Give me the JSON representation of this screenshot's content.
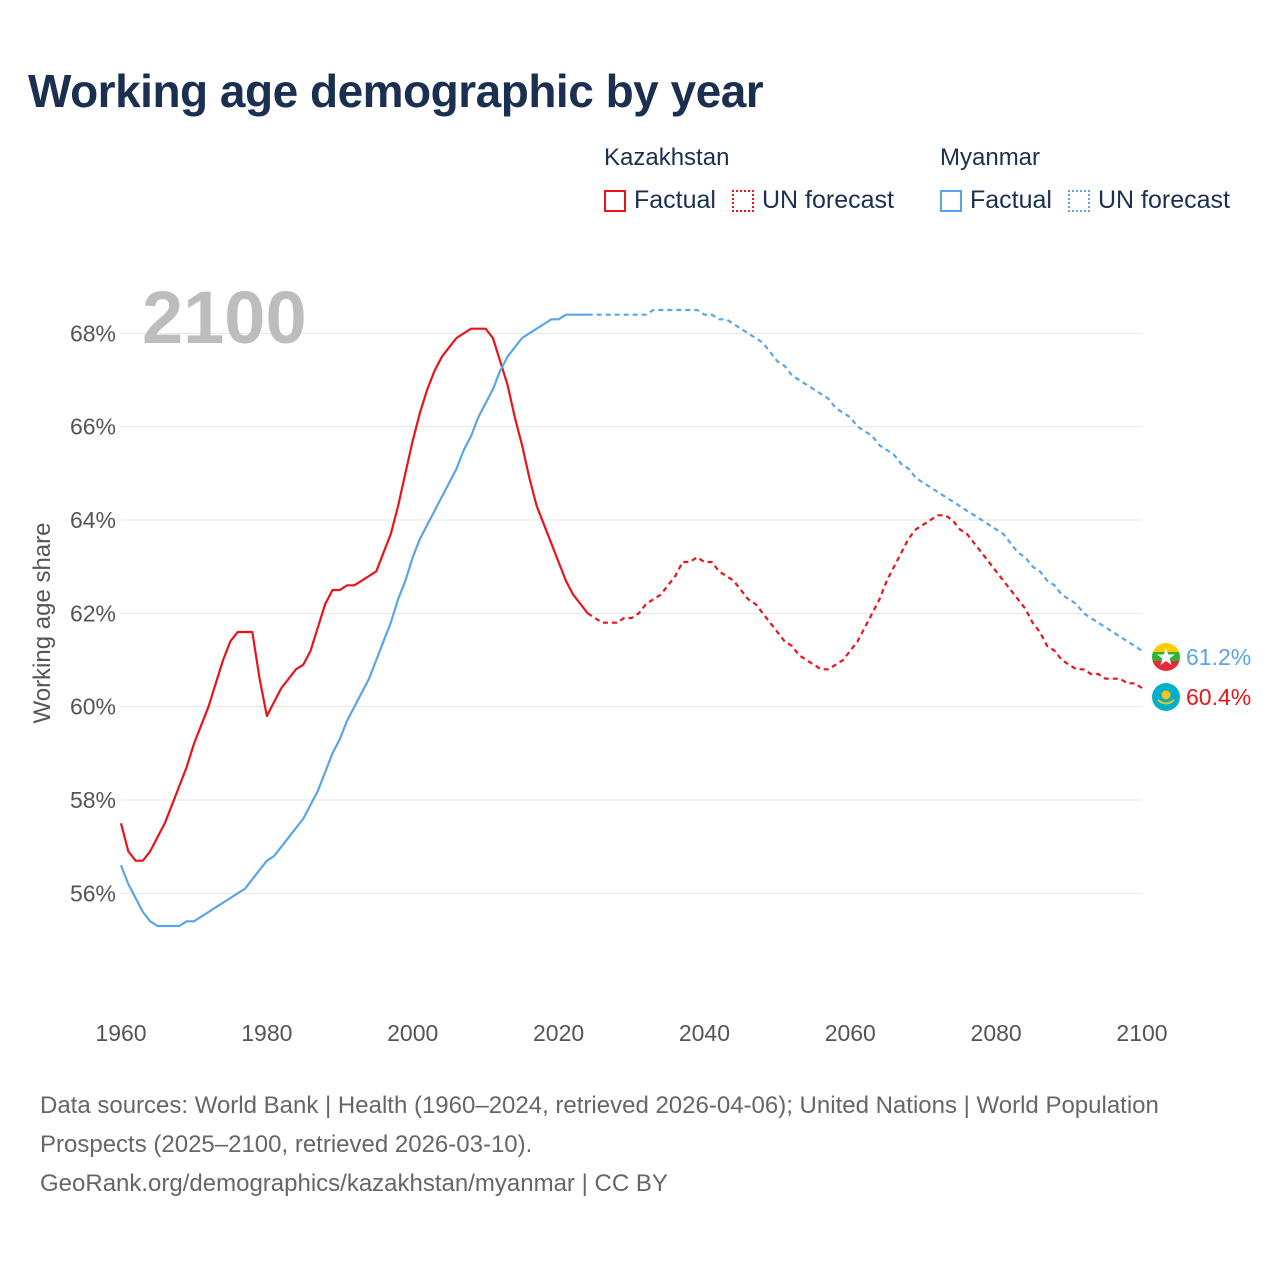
{
  "title": "Working age demographic by year",
  "year_label": "2100",
  "legend": {
    "groups": [
      {
        "name": "Kazakhstan",
        "factual_label": "Factual",
        "forecast_label": "UN forecast",
        "color": "#e8141a"
      },
      {
        "name": "Myanmar",
        "factual_label": "Factual",
        "forecast_label": "UN forecast",
        "color": "#5aa5e6"
      }
    ]
  },
  "sources": {
    "line1": "Data sources: World Bank | Health (1960–2024, retrieved 2026-04-06); United Nations | World Population Prospects (2025–2100, retrieved 2026-03-10).",
    "line2": "GeoRank.org/demographics/kazakhstan/myanmar | CC BY"
  },
  "chart_data": {
    "type": "line",
    "title": "Working age demographic by year",
    "xlabel": "",
    "ylabel": "Working age share",
    "xlim": [
      1960,
      2100
    ],
    "ylim": [
      54.4,
      69.4
    ],
    "x_ticks": [
      1960,
      1980,
      2000,
      2020,
      2040,
      2060,
      2080,
      2100
    ],
    "y_ticks": [
      56,
      58,
      60,
      62,
      64,
      66,
      68
    ],
    "y_tick_suffix": "%",
    "factual_end_year": 2024,
    "series": [
      {
        "name": "Kazakhstan",
        "color": "#e8141a",
        "end_label": "60.4%",
        "points": [
          [
            1960,
            57.5
          ],
          [
            1961,
            56.9
          ],
          [
            1962,
            56.7
          ],
          [
            1963,
            56.7
          ],
          [
            1964,
            56.9
          ],
          [
            1965,
            57.2
          ],
          [
            1966,
            57.5
          ],
          [
            1967,
            57.9
          ],
          [
            1968,
            58.3
          ],
          [
            1969,
            58.7
          ],
          [
            1970,
            59.2
          ],
          [
            1971,
            59.6
          ],
          [
            1972,
            60.0
          ],
          [
            1973,
            60.5
          ],
          [
            1974,
            61.0
          ],
          [
            1975,
            61.4
          ],
          [
            1976,
            61.6
          ],
          [
            1977,
            61.6
          ],
          [
            1978,
            61.6
          ],
          [
            1979,
            60.6
          ],
          [
            1980,
            59.8
          ],
          [
            1981,
            60.1
          ],
          [
            1982,
            60.4
          ],
          [
            1983,
            60.6
          ],
          [
            1984,
            60.8
          ],
          [
            1985,
            60.9
          ],
          [
            1986,
            61.2
          ],
          [
            1987,
            61.7
          ],
          [
            1988,
            62.2
          ],
          [
            1989,
            62.5
          ],
          [
            1990,
            62.5
          ],
          [
            1991,
            62.6
          ],
          [
            1992,
            62.6
          ],
          [
            1993,
            62.7
          ],
          [
            1994,
            62.8
          ],
          [
            1995,
            62.9
          ],
          [
            1996,
            63.3
          ],
          [
            1997,
            63.7
          ],
          [
            1998,
            64.3
          ],
          [
            1999,
            65.0
          ],
          [
            2000,
            65.7
          ],
          [
            2001,
            66.3
          ],
          [
            2002,
            66.8
          ],
          [
            2003,
            67.2
          ],
          [
            2004,
            67.5
          ],
          [
            2005,
            67.7
          ],
          [
            2006,
            67.9
          ],
          [
            2007,
            68.0
          ],
          [
            2008,
            68.1
          ],
          [
            2009,
            68.1
          ],
          [
            2010,
            68.1
          ],
          [
            2011,
            67.9
          ],
          [
            2012,
            67.4
          ],
          [
            2013,
            66.9
          ],
          [
            2014,
            66.2
          ],
          [
            2015,
            65.6
          ],
          [
            2016,
            64.9
          ],
          [
            2017,
            64.3
          ],
          [
            2018,
            63.9
          ],
          [
            2019,
            63.5
          ],
          [
            2020,
            63.1
          ],
          [
            2021,
            62.7
          ],
          [
            2022,
            62.4
          ],
          [
            2023,
            62.2
          ],
          [
            2024,
            62.0
          ],
          [
            2025,
            61.9
          ],
          [
            2026,
            61.8
          ],
          [
            2027,
            61.8
          ],
          [
            2028,
            61.8
          ],
          [
            2029,
            61.9
          ],
          [
            2030,
            61.9
          ],
          [
            2031,
            62.0
          ],
          [
            2032,
            62.2
          ],
          [
            2033,
            62.3
          ],
          [
            2034,
            62.4
          ],
          [
            2035,
            62.6
          ],
          [
            2036,
            62.8
          ],
          [
            2037,
            63.1
          ],
          [
            2038,
            63.1
          ],
          [
            2039,
            63.2
          ],
          [
            2040,
            63.1
          ],
          [
            2041,
            63.1
          ],
          [
            2042,
            62.9
          ],
          [
            2043,
            62.8
          ],
          [
            2044,
            62.7
          ],
          [
            2045,
            62.5
          ],
          [
            2046,
            62.3
          ],
          [
            2047,
            62.2
          ],
          [
            2048,
            62.0
          ],
          [
            2049,
            61.8
          ],
          [
            2050,
            61.6
          ],
          [
            2051,
            61.4
          ],
          [
            2052,
            61.3
          ],
          [
            2053,
            61.1
          ],
          [
            2054,
            61.0
          ],
          [
            2055,
            60.9
          ],
          [
            2056,
            60.8
          ],
          [
            2057,
            60.8
          ],
          [
            2058,
            60.9
          ],
          [
            2059,
            61.0
          ],
          [
            2060,
            61.2
          ],
          [
            2061,
            61.4
          ],
          [
            2062,
            61.7
          ],
          [
            2063,
            62.0
          ],
          [
            2064,
            62.3
          ],
          [
            2065,
            62.7
          ],
          [
            2066,
            63.0
          ],
          [
            2067,
            63.3
          ],
          [
            2068,
            63.6
          ],
          [
            2069,
            63.8
          ],
          [
            2070,
            63.9
          ],
          [
            2071,
            64.0
          ],
          [
            2072,
            64.1
          ],
          [
            2073,
            64.1
          ],
          [
            2074,
            64.0
          ],
          [
            2075,
            63.8
          ],
          [
            2076,
            63.7
          ],
          [
            2077,
            63.5
          ],
          [
            2078,
            63.3
          ],
          [
            2079,
            63.1
          ],
          [
            2080,
            62.9
          ],
          [
            2081,
            62.7
          ],
          [
            2082,
            62.5
          ],
          [
            2083,
            62.3
          ],
          [
            2084,
            62.1
          ],
          [
            2085,
            61.8
          ],
          [
            2086,
            61.6
          ],
          [
            2087,
            61.3
          ],
          [
            2088,
            61.2
          ],
          [
            2089,
            61.0
          ],
          [
            2090,
            60.9
          ],
          [
            2091,
            60.8
          ],
          [
            2092,
            60.8
          ],
          [
            2093,
            60.7
          ],
          [
            2094,
            60.7
          ],
          [
            2095,
            60.6
          ],
          [
            2096,
            60.6
          ],
          [
            2097,
            60.6
          ],
          [
            2098,
            60.5
          ],
          [
            2099,
            60.5
          ],
          [
            2100,
            60.4
          ]
        ]
      },
      {
        "name": "Myanmar",
        "color": "#5aa5e6",
        "end_label": "61.2%",
        "points": [
          [
            1960,
            56.6
          ],
          [
            1961,
            56.2
          ],
          [
            1962,
            55.9
          ],
          [
            1963,
            55.6
          ],
          [
            1964,
            55.4
          ],
          [
            1965,
            55.3
          ],
          [
            1966,
            55.3
          ],
          [
            1967,
            55.3
          ],
          [
            1968,
            55.3
          ],
          [
            1969,
            55.4
          ],
          [
            1970,
            55.4
          ],
          [
            1971,
            55.5
          ],
          [
            1972,
            55.6
          ],
          [
            1973,
            55.7
          ],
          [
            1974,
            55.8
          ],
          [
            1975,
            55.9
          ],
          [
            1976,
            56.0
          ],
          [
            1977,
            56.1
          ],
          [
            1978,
            56.3
          ],
          [
            1979,
            56.5
          ],
          [
            1980,
            56.7
          ],
          [
            1981,
            56.8
          ],
          [
            1982,
            57.0
          ],
          [
            1983,
            57.2
          ],
          [
            1984,
            57.4
          ],
          [
            1985,
            57.6
          ],
          [
            1986,
            57.9
          ],
          [
            1987,
            58.2
          ],
          [
            1988,
            58.6
          ],
          [
            1989,
            59.0
          ],
          [
            1990,
            59.3
          ],
          [
            1991,
            59.7
          ],
          [
            1992,
            60.0
          ],
          [
            1993,
            60.3
          ],
          [
            1994,
            60.6
          ],
          [
            1995,
            61.0
          ],
          [
            1996,
            61.4
          ],
          [
            1997,
            61.8
          ],
          [
            1998,
            62.3
          ],
          [
            1999,
            62.7
          ],
          [
            2000,
            63.2
          ],
          [
            2001,
            63.6
          ],
          [
            2002,
            63.9
          ],
          [
            2003,
            64.2
          ],
          [
            2004,
            64.5
          ],
          [
            2005,
            64.8
          ],
          [
            2006,
            65.1
          ],
          [
            2007,
            65.5
          ],
          [
            2008,
            65.8
          ],
          [
            2009,
            66.2
          ],
          [
            2010,
            66.5
          ],
          [
            2011,
            66.8
          ],
          [
            2012,
            67.2
          ],
          [
            2013,
            67.5
          ],
          [
            2014,
            67.7
          ],
          [
            2015,
            67.9
          ],
          [
            2016,
            68.0
          ],
          [
            2017,
            68.1
          ],
          [
            2018,
            68.2
          ],
          [
            2019,
            68.3
          ],
          [
            2020,
            68.3
          ],
          [
            2021,
            68.4
          ],
          [
            2022,
            68.4
          ],
          [
            2023,
            68.4
          ],
          [
            2024,
            68.4
          ],
          [
            2025,
            68.4
          ],
          [
            2026,
            68.4
          ],
          [
            2027,
            68.4
          ],
          [
            2028,
            68.4
          ],
          [
            2029,
            68.4
          ],
          [
            2030,
            68.4
          ],
          [
            2031,
            68.4
          ],
          [
            2032,
            68.4
          ],
          [
            2033,
            68.5
          ],
          [
            2034,
            68.5
          ],
          [
            2035,
            68.5
          ],
          [
            2036,
            68.5
          ],
          [
            2037,
            68.5
          ],
          [
            2038,
            68.5
          ],
          [
            2039,
            68.5
          ],
          [
            2040,
            68.4
          ],
          [
            2041,
            68.4
          ],
          [
            2042,
            68.3
          ],
          [
            2043,
            68.3
          ],
          [
            2044,
            68.2
          ],
          [
            2045,
            68.1
          ],
          [
            2046,
            68.0
          ],
          [
            2047,
            67.9
          ],
          [
            2048,
            67.8
          ],
          [
            2049,
            67.6
          ],
          [
            2050,
            67.4
          ],
          [
            2051,
            67.3
          ],
          [
            2052,
            67.1
          ],
          [
            2053,
            67.0
          ],
          [
            2054,
            66.9
          ],
          [
            2055,
            66.8
          ],
          [
            2056,
            66.7
          ],
          [
            2057,
            66.6
          ],
          [
            2058,
            66.4
          ],
          [
            2059,
            66.3
          ],
          [
            2060,
            66.2
          ],
          [
            2061,
            66.0
          ],
          [
            2062,
            65.9
          ],
          [
            2063,
            65.8
          ],
          [
            2064,
            65.6
          ],
          [
            2065,
            65.5
          ],
          [
            2066,
            65.4
          ],
          [
            2067,
            65.2
          ],
          [
            2068,
            65.1
          ],
          [
            2069,
            64.9
          ],
          [
            2070,
            64.8
          ],
          [
            2071,
            64.7
          ],
          [
            2072,
            64.6
          ],
          [
            2073,
            64.5
          ],
          [
            2074,
            64.4
          ],
          [
            2075,
            64.3
          ],
          [
            2076,
            64.2
          ],
          [
            2077,
            64.1
          ],
          [
            2078,
            64.0
          ],
          [
            2079,
            63.9
          ],
          [
            2080,
            63.8
          ],
          [
            2081,
            63.7
          ],
          [
            2082,
            63.5
          ],
          [
            2083,
            63.3
          ],
          [
            2084,
            63.2
          ],
          [
            2085,
            63.0
          ],
          [
            2086,
            62.9
          ],
          [
            2087,
            62.7
          ],
          [
            2088,
            62.6
          ],
          [
            2089,
            62.4
          ],
          [
            2090,
            62.3
          ],
          [
            2091,
            62.2
          ],
          [
            2092,
            62.0
          ],
          [
            2093,
            61.9
          ],
          [
            2094,
            61.8
          ],
          [
            2095,
            61.7
          ],
          [
            2096,
            61.6
          ],
          [
            2097,
            61.5
          ],
          [
            2098,
            61.4
          ],
          [
            2099,
            61.3
          ],
          [
            2100,
            61.2
          ]
        ]
      }
    ]
  }
}
